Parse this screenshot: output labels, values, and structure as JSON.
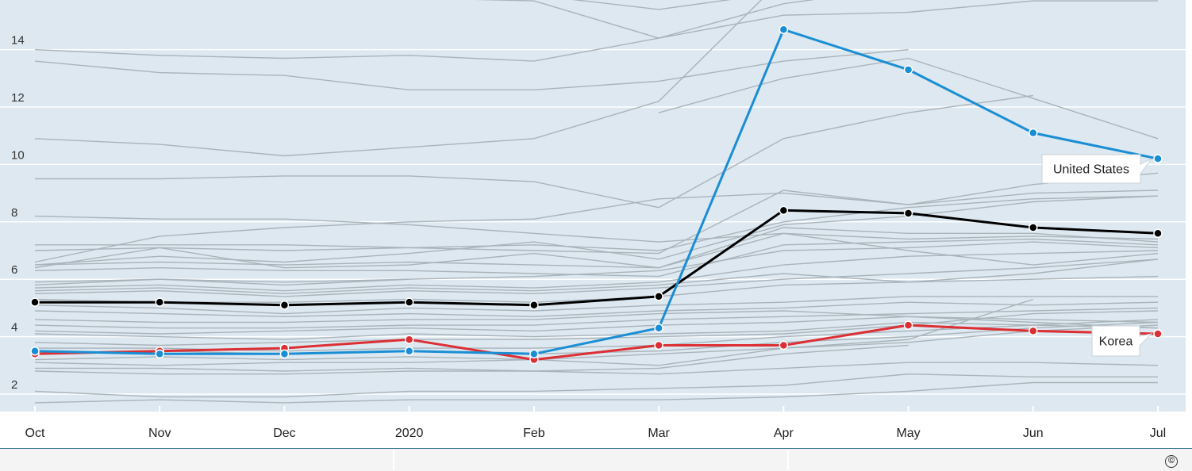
{
  "chart_data": {
    "type": "line",
    "title": "",
    "xlabel": "",
    "ylabel": "",
    "categories": [
      "Oct",
      "Nov",
      "Dec",
      "2020",
      "Feb",
      "Mar",
      "Apr",
      "May",
      "Jun",
      "Jul"
    ],
    "y_ticks": [
      "2",
      "4",
      "6",
      "8",
      "10",
      "12",
      "14"
    ],
    "ylim": [
      1.4,
      15.8
    ],
    "grid": true,
    "colors": {
      "plot_bg": "#dde8f0",
      "gridline": "#ffffff",
      "context_line": "#a9b3ba",
      "united_states": "#1a8ed4",
      "korea": "#dc2f34",
      "average": "#000000"
    },
    "highlighted": [
      {
        "name": "United States",
        "key": "united_states",
        "values": [
          3.5,
          3.4,
          3.4,
          3.5,
          3.4,
          4.3,
          14.7,
          13.3,
          11.1,
          10.2
        ]
      },
      {
        "name": "Korea",
        "key": "korea",
        "values": [
          3.4,
          3.5,
          3.6,
          3.9,
          3.2,
          3.7,
          3.7,
          4.4,
          4.2,
          4.1
        ]
      },
      {
        "name": "",
        "key": "average",
        "values": [
          5.2,
          5.2,
          5.1,
          5.2,
          5.1,
          5.4,
          8.4,
          8.3,
          7.8,
          7.6
        ]
      }
    ],
    "context_series": [
      [
        15.9,
        15.9,
        15.8,
        15.8,
        15.7,
        14.4,
        15.6,
        16.2,
        16.4,
        16.4
      ],
      [
        15.9,
        15.9,
        15.8,
        15.9,
        15.9,
        15.4,
        16.0,
        16.5,
        16.6,
        16.6
      ],
      [
        14.0,
        13.8,
        13.7,
        13.8,
        13.6,
        14.4,
        15.2,
        15.3,
        15.7,
        15.7
      ],
      [
        13.6,
        13.2,
        13.1,
        12.6,
        12.6,
        12.9,
        13.6,
        14.0,
        null,
        null
      ],
      [
        10.9,
        10.7,
        10.3,
        10.6,
        10.9,
        12.2,
        16.5,
        null,
        null,
        null
      ],
      [
        null,
        null,
        null,
        null,
        null,
        11.8,
        13.0,
        13.7,
        12.3,
        10.9
      ],
      [
        9.5,
        9.5,
        9.6,
        9.6,
        9.4,
        8.5,
        10.9,
        11.8,
        12.4,
        null
      ],
      [
        8.2,
        8.1,
        8.1,
        7.9,
        7.6,
        7.3,
        7.6,
        7.0,
        6.5,
        6.9
      ],
      [
        7.2,
        7.2,
        7.2,
        7.1,
        7.0,
        6.9,
        9.1,
        8.6,
        9.3,
        9.7
      ],
      [
        6.6,
        7.5,
        7.8,
        8.0,
        8.1,
        8.8,
        9.0,
        8.6,
        9.0,
        9.1
      ],
      [
        7.0,
        7.1,
        7.0,
        7.1,
        7.2,
        7.0,
        8.0,
        8.5,
        8.8,
        8.9
      ],
      [
        6.5,
        6.8,
        6.6,
        6.9,
        7.3,
        6.7,
        7.9,
        8.2,
        8.7,
        8.9
      ],
      [
        6.4,
        7.1,
        6.4,
        6.5,
        6.9,
        6.4,
        7.8,
        7.6,
        7.6,
        7.3
      ],
      [
        6.5,
        6.6,
        6.5,
        6.6,
        6.5,
        6.4,
        7.6,
        7.4,
        7.5,
        7.4
      ],
      [
        6.3,
        6.4,
        6.3,
        6.3,
        6.2,
        6.1,
        7.2,
        7.3,
        7.4,
        7.2
      ],
      [
        5.9,
        6.0,
        5.8,
        6.0,
        6.1,
        6.3,
        7.0,
        7.1,
        7.3,
        7.1
      ],
      [
        5.8,
        6.0,
        5.9,
        6.0,
        null,
        null,
        null,
        null,
        null,
        null
      ],
      [
        5.7,
        5.8,
        5.6,
        5.8,
        5.7,
        5.9,
        6.5,
        6.8,
        6.9,
        7.0
      ],
      [
        5.6,
        5.7,
        5.5,
        5.7,
        5.6,
        5.8,
        6.2,
        5.9,
        6.2,
        6.7
      ],
      [
        5.5,
        5.6,
        5.4,
        5.6,
        5.5,
        5.7,
        6.0,
        6.2,
        6.4,
        6.7
      ],
      [
        5.3,
        5.2,
        5.2,
        5.3,
        5.2,
        5.4,
        5.8,
        5.9,
        6.0,
        6.1
      ],
      [
        5.1,
        5.0,
        4.8,
        5.0,
        4.9,
        5.1,
        5.2,
        5.4,
        5.4,
        5.4
      ],
      [
        4.9,
        4.8,
        4.7,
        4.8,
        4.7,
        4.9,
        5.0,
        5.2,
        5.1,
        5.2
      ],
      [
        4.6,
        4.5,
        4.5,
        4.6,
        4.6,
        4.8,
        4.9,
        4.7,
        4.5,
        4.3
      ],
      [
        4.4,
        4.3,
        4.3,
        4.4,
        4.4,
        4.6,
        4.7,
        4.8,
        4.9,
        5.0
      ],
      [
        4.2,
        4.1,
        4.2,
        4.3,
        4.2,
        4.4,
        4.5,
        4.7,
        4.6,
        4.5
      ],
      [
        4.1,
        4.0,
        3.9,
        4.1,
        4.0,
        4.1,
        4.2,
        4.5,
        4.4,
        4.3
      ],
      [
        3.8,
        3.7,
        3.8,
        3.9,
        3.9,
        4.0,
        4.1,
        4.4,
        4.8,
        4.9
      ],
      [
        3.6,
        3.6,
        3.5,
        3.6,
        3.6,
        3.7,
        4.0,
        4.2,
        4.4,
        4.6
      ],
      [
        3.4,
        3.5,
        3.4,
        3.5,
        3.4,
        3.5,
        3.8,
        4.0,
        4.3,
        4.5
      ],
      [
        3.2,
        3.3,
        3.2,
        3.3,
        3.2,
        3.4,
        3.6,
        3.8,
        4.2,
        4.4
      ],
      [
        3.1,
        3.0,
        3.1,
        3.1,
        3.2,
        3.0,
        3.6,
        3.9,
        5.3,
        null
      ],
      [
        2.9,
        2.9,
        2.8,
        2.9,
        2.8,
        2.9,
        3.4,
        3.7,
        null,
        null
      ],
      [
        2.8,
        2.7,
        2.7,
        2.8,
        2.8,
        2.7,
        2.9,
        3.1,
        3.1,
        3.0
      ],
      [
        2.1,
        1.9,
        1.9,
        2.1,
        2.1,
        2.2,
        2.3,
        2.7,
        2.6,
        2.6
      ],
      [
        1.7,
        1.8,
        1.7,
        1.8,
        1.8,
        1.8,
        1.9,
        2.1,
        2.4,
        2.4
      ]
    ]
  },
  "footer": {
    "copyright_symbol": "©"
  }
}
